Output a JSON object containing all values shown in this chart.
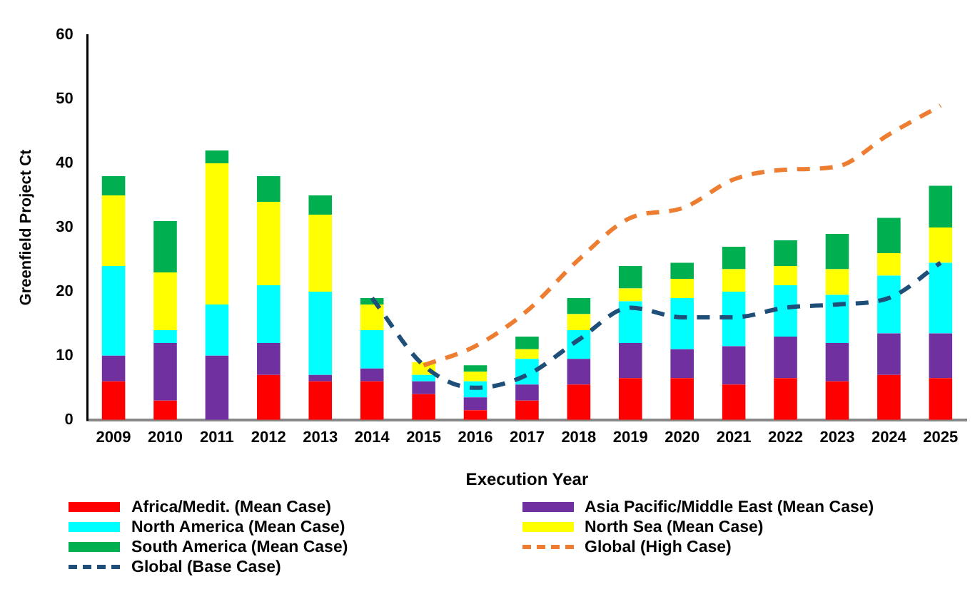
{
  "chart_data": {
    "type": "bar",
    "stacked": true,
    "xlabel": "Execution Year",
    "ylabel": "Greenfield Project Ct",
    "categories": [
      "2009",
      "2010",
      "2011",
      "2012",
      "2013",
      "2014",
      "2015",
      "2016",
      "2017",
      "2018",
      "2019",
      "2020",
      "2021",
      "2022",
      "2023",
      "2024",
      "2025"
    ],
    "ylim": [
      0,
      60
    ],
    "yticks": [
      0,
      10,
      20,
      30,
      40,
      50,
      60
    ],
    "grid": false,
    "legend": "bottom",
    "marker": "none",
    "series": [
      {
        "name": "Africa/Medit. (Mean Case)",
        "color": "#ff0000",
        "values": [
          6,
          3,
          0,
          7,
          6,
          6,
          4,
          1.5,
          3,
          5.5,
          6.5,
          6.5,
          5.5,
          6.5,
          6,
          7,
          6.5
        ]
      },
      {
        "name": "Asia Pacific/Middle East (Mean Case)",
        "color": "#7030a0",
        "values": [
          4,
          9,
          10,
          5,
          1,
          2,
          2,
          2,
          2.5,
          4,
          5.5,
          4.5,
          6,
          6.5,
          6,
          6.5,
          7
        ]
      },
      {
        "name": "North America (Mean Case)",
        "color": "#00ffff",
        "values": [
          14,
          2,
          8,
          9,
          13,
          6,
          1,
          2.5,
          4,
          4.5,
          6.5,
          8,
          8.5,
          8,
          7.5,
          9,
          11
        ]
      },
      {
        "name": "North Sea (Mean Case)",
        "color": "#ffff00",
        "values": [
          11,
          9,
          22,
          13,
          12,
          4,
          2,
          1.5,
          1.5,
          2.5,
          2,
          3,
          3.5,
          3,
          4,
          3.5,
          5.5
        ]
      },
      {
        "name": "South America (Mean Case)",
        "color": "#00b050",
        "values": [
          3,
          8,
          2,
          4,
          3,
          1,
          0,
          1,
          2,
          2.5,
          3.5,
          2.5,
          3.5,
          4,
          5.5,
          5.5,
          6.5
        ]
      },
      {
        "name": "Global (High Case)",
        "type": "line",
        "line_style": "dashed",
        "color": "#ed7d31",
        "values": [
          null,
          null,
          null,
          null,
          null,
          null,
          8.5,
          11.5,
          17,
          25,
          31.5,
          33,
          37.5,
          39,
          39.5,
          44.5,
          49
        ]
      },
      {
        "name": "Global (Base Case)",
        "type": "line",
        "line_style": "dashed",
        "color": "#1f4e79",
        "values": [
          null,
          null,
          null,
          null,
          null,
          19,
          8.5,
          5,
          7,
          12.5,
          17.5,
          16,
          16,
          17.5,
          18,
          19,
          24.5
        ]
      }
    ]
  }
}
